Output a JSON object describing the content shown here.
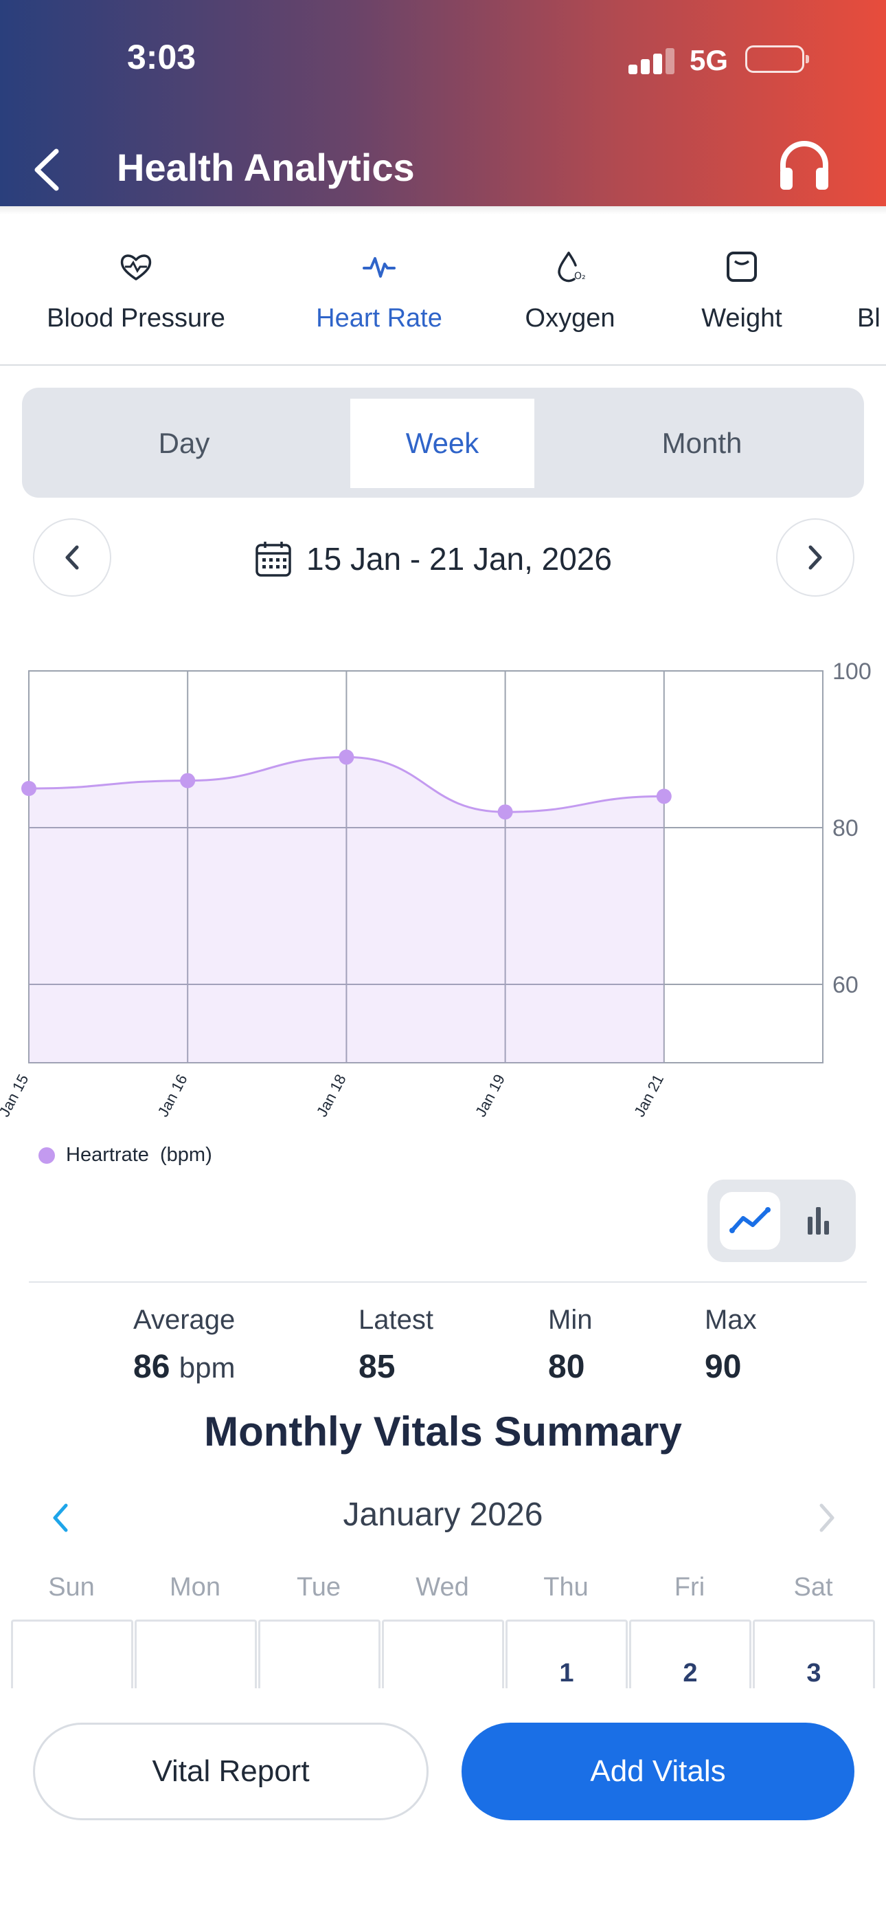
{
  "status_bar": {
    "time": "3:03",
    "network": "5G"
  },
  "header": {
    "title": "Health Analytics"
  },
  "tabs": [
    {
      "label": "Blood Pressure",
      "icon": "heart-pulse-icon"
    },
    {
      "label": "Heart Rate",
      "icon": "pulse-icon",
      "active": true
    },
    {
      "label": "Oxygen",
      "icon": "oxygen-drop-icon"
    },
    {
      "label": "Weight",
      "icon": "scale-icon"
    },
    {
      "label": "Bl",
      "icon": ""
    }
  ],
  "period": {
    "options": [
      "Day",
      "Week",
      "Month"
    ],
    "selected": "Week"
  },
  "date_range": "15 Jan - 21 Jan, 2026",
  "chart_data": {
    "type": "area",
    "x": [
      "Jan 15",
      "Jan 16",
      "Jan 18",
      "Jan 19",
      "Jan 21"
    ],
    "series": [
      {
        "name": "Heartrate",
        "values": [
          85,
          86,
          89,
          82,
          84
        ]
      }
    ],
    "ylim": [
      50,
      100
    ],
    "y_ticks": [
      100,
      80,
      60
    ],
    "grid": true,
    "color": "#c39af0"
  },
  "legend": {
    "label": "Heartrate  (bpm)"
  },
  "stats": {
    "average": {
      "label": "Average",
      "value": "86",
      "unit": "bpm"
    },
    "latest": {
      "label": "Latest",
      "value": "85"
    },
    "min": {
      "label": "Min",
      "value": "80"
    },
    "max": {
      "label": "Max",
      "value": "90"
    }
  },
  "summary": {
    "title": "Monthly Vitals Summary",
    "month": "January 2026",
    "weekdays": [
      "Sun",
      "Mon",
      "Tue",
      "Wed",
      "Thu",
      "Fri",
      "Sat"
    ],
    "first_week": [
      "",
      "",
      "",
      "",
      "1",
      "2",
      "3"
    ]
  },
  "actions": {
    "report": "Vital Report",
    "add": "Add Vitals"
  },
  "colors": {
    "accent": "#1a6fe6",
    "active_tab": "#2f64c9",
    "series": "#c39af0"
  }
}
